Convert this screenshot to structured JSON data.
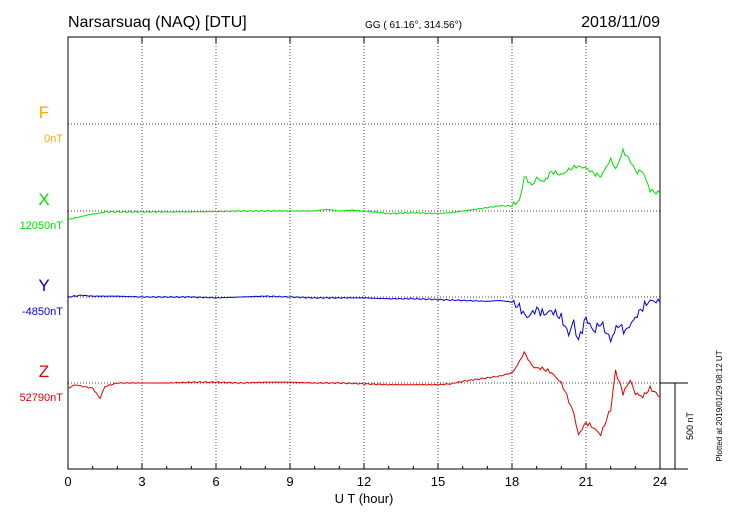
{
  "header": {
    "station": "Narsarsuaq (NAQ)  [DTU]",
    "coords": "GG ( 61.16°, 314.56°)",
    "date": "2018/11/09"
  },
  "footer": {
    "plotted": "Plotted at 2019/01/29 08:12 UT"
  },
  "scale": {
    "label": "500 nT",
    "value_nT": 500
  },
  "chart_data": {
    "type": "line",
    "xlabel": "U T (hour)",
    "xlim": [
      0,
      24
    ],
    "xticks": [
      0,
      3,
      6,
      9,
      12,
      15,
      18,
      21,
      24
    ],
    "grid": true,
    "components": [
      {
        "name": "F",
        "baseline": "0nT",
        "color": "#ffa500",
        "x": [],
        "y": []
      },
      {
        "name": "X",
        "baseline": "12050nT",
        "color": "#00e000",
        "x": [
          0,
          0.3,
          0.6,
          0.9,
          1.2,
          1.5,
          2,
          3,
          4,
          5,
          6,
          7,
          8,
          9,
          10,
          10.5,
          11,
          11.5,
          12,
          13,
          14,
          15,
          15.5,
          16,
          16.5,
          17,
          17.5,
          18,
          18.3,
          18.5,
          18.8,
          19,
          19.3,
          19.6,
          20,
          20.3,
          20.6,
          21,
          21.3,
          21.6,
          22,
          22.2,
          22.5,
          22.8,
          23,
          23.3,
          23.6,
          24
        ],
        "y": [
          -50,
          -40,
          -30,
          -20,
          -15,
          -5,
          -5,
          -5,
          -5,
          -5,
          -3,
          0,
          0,
          0,
          0,
          10,
          0,
          5,
          0,
          -15,
          -10,
          -15,
          -10,
          0,
          10,
          20,
          30,
          30,
          60,
          200,
          150,
          190,
          170,
          230,
          210,
          240,
          260,
          250,
          220,
          200,
          300,
          240,
          350,
          290,
          230,
          230,
          120,
          100
        ]
      },
      {
        "name": "Y",
        "baseline": "-4850nT",
        "color": "#0000e0",
        "x": [
          0,
          0.5,
          1,
          2,
          3,
          4,
          5,
          6,
          7,
          8,
          9,
          10,
          11,
          12,
          13,
          14,
          15,
          16,
          17,
          17.5,
          18,
          18.3,
          18.6,
          19,
          19.3,
          19.6,
          20,
          20.3,
          20.5,
          20.7,
          21,
          21.3,
          21.6,
          22,
          22.3,
          22.6,
          23,
          23.3,
          23.6,
          24
        ],
        "y": [
          0,
          10,
          5,
          5,
          0,
          0,
          0,
          -5,
          0,
          5,
          0,
          -5,
          -5,
          -5,
          -10,
          -10,
          -15,
          -20,
          -25,
          -20,
          -30,
          -60,
          -120,
          -70,
          -100,
          -80,
          -120,
          -220,
          -150,
          -250,
          -120,
          -200,
          -150,
          -250,
          -160,
          -200,
          -120,
          -60,
          -20,
          -30
        ]
      },
      {
        "name": "Z",
        "baseline": "52790nT",
        "color": "#e00000",
        "x": [
          0,
          0.3,
          0.6,
          1,
          1.3,
          1.5,
          2,
          3,
          4,
          5,
          6,
          7,
          8,
          9,
          10,
          11,
          12,
          13,
          14,
          15,
          15.5,
          16,
          16.5,
          17,
          17.5,
          18,
          18.3,
          18.5,
          18.8,
          19,
          19.3,
          19.6,
          20,
          20.3,
          20.5,
          20.7,
          21,
          21.3,
          21.6,
          22,
          22.2,
          22.5,
          22.8,
          23,
          23.3,
          23.6,
          24
        ],
        "y": [
          -30,
          -10,
          -20,
          -30,
          -90,
          -20,
          0,
          0,
          0,
          5,
          5,
          0,
          5,
          5,
          0,
          0,
          -5,
          -10,
          -10,
          -10,
          -5,
          10,
          20,
          30,
          40,
          60,
          120,
          180,
          100,
          90,
          80,
          60,
          0,
          -100,
          -180,
          -300,
          -230,
          -260,
          -300,
          -150,
          70,
          -60,
          20,
          -60,
          -80,
          -30,
          -80
        ]
      }
    ]
  }
}
